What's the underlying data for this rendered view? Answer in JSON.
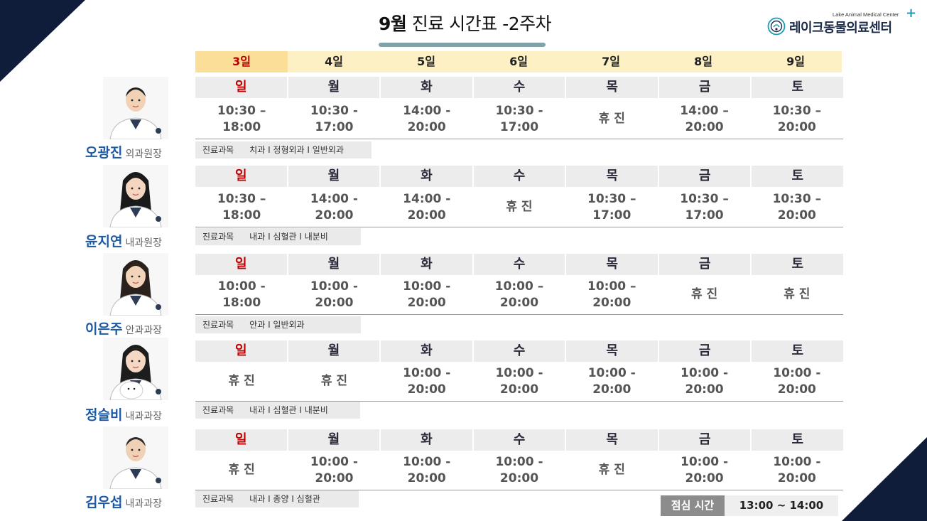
{
  "header": {
    "month": "9월",
    "title_rest": " 진료 시간표 -2주차"
  },
  "logo": {
    "subtitle": "Lake Animal Medical Center",
    "name": "레이크동물의료센터",
    "plus": "+",
    "accent_color": "#1a9bb6"
  },
  "dates": [
    "3일",
    "4일",
    "5일",
    "6일",
    "7일",
    "8일",
    "9일"
  ],
  "dept_label": "진료과목",
  "doctors": [
    {
      "name": "오광진",
      "title": "외과원장",
      "days": [
        "일",
        "월",
        "화",
        "수",
        "목",
        "금",
        "토"
      ],
      "hours": [
        "10:30 –\n18:00",
        "10:30 -\n17:00",
        "14:00 -\n20:00",
        "10:30 -\n17:00",
        "휴 진",
        "14:00 –\n20:00",
        "10:30 –\n20:00"
      ],
      "departments": "치과 I 정형외과 I 일반외과"
    },
    {
      "name": "윤지연",
      "title": "내과원장",
      "days": [
        "일",
        "월",
        "화",
        "수",
        "목",
        "금",
        "토"
      ],
      "hours": [
        "10:30 –\n18:00",
        "14:00 -\n20:00",
        "14:00 -\n20:00",
        "휴 진",
        "10:30 –\n17:00",
        "10:30 –\n17:00",
        "10:30 –\n20:00"
      ],
      "departments": "내과 I 심혈관 I 내분비"
    },
    {
      "name": "이은주",
      "title": "안과과장",
      "days": [
        "일",
        "월",
        "화",
        "수",
        "목",
        "금",
        "토"
      ],
      "hours": [
        "10:00 -\n18:00",
        "10:00 -\n20:00",
        "10:00 -\n20:00",
        "10:00 –\n20:00",
        "10:00 –\n20:00",
        "휴 진",
        "휴 진"
      ],
      "departments": "안과 I 일반외과"
    },
    {
      "name": "정슬비",
      "title": "내과과장",
      "days": [
        "일",
        "월",
        "화",
        "수",
        "목",
        "금",
        "토"
      ],
      "hours": [
        "휴 진",
        "휴 진",
        "10:00 -\n20:00",
        "10:00 -\n20:00",
        "10:00 -\n20:00",
        "10:00 -\n20:00",
        "10:00 -\n20:00"
      ],
      "departments": "내과 I 심혈관 I 내분비"
    },
    {
      "name": "김우섭",
      "title": "내과과장",
      "days": [
        "일",
        "월",
        "화",
        "수",
        "목",
        "금",
        "토"
      ],
      "hours": [
        "휴 진",
        "10:00 -\n20:00",
        "10:00 -\n20:00",
        "10:00 -\n20:00",
        "휴 진",
        "10:00 -\n20:00",
        "10:00 -\n20:00"
      ],
      "departments": "내과 I 종양 I 심혈관"
    }
  ],
  "lunch": {
    "label": "점심 시간",
    "value": "13:00 ~ 14:00"
  },
  "colors": {
    "navy": "#0f1d3a",
    "sunday_red": "#c00000",
    "name_blue": "#1d5aa6",
    "date_row": "#fdf0c4"
  }
}
